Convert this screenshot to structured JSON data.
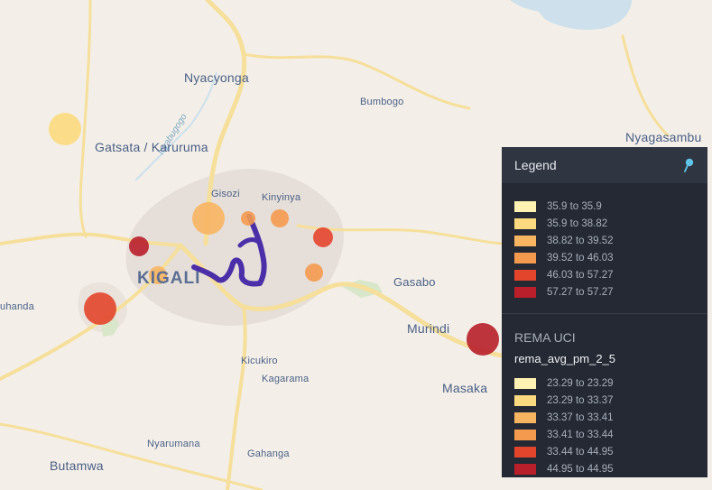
{
  "places": [
    {
      "id": "nyacyonga",
      "label": "Nyacyonga",
      "size": "big"
    },
    {
      "id": "bumbogo",
      "label": "Bumbogo",
      "size": "small"
    },
    {
      "id": "nyagasambu",
      "label": "Nyagasambu",
      "size": "big"
    },
    {
      "id": "gatsata",
      "label": "Gatsata / Karuruma",
      "size": "big"
    },
    {
      "id": "gisozi",
      "label": "Gisozi",
      "size": "small"
    },
    {
      "id": "kinyinya",
      "label": "Kinyinya",
      "size": "small"
    },
    {
      "id": "kigali",
      "label": "KIGALI",
      "size": "city"
    },
    {
      "id": "gasabo",
      "label": "Gasabo",
      "size": "med"
    },
    {
      "id": "murindi",
      "label": "Murindi",
      "size": "big"
    },
    {
      "id": "masaka",
      "label": "Masaka",
      "size": "big"
    },
    {
      "id": "kicukiro",
      "label": "Kicukiro",
      "size": "small"
    },
    {
      "id": "kagarama",
      "label": "Kagarama",
      "size": "small"
    },
    {
      "id": "nyarumana",
      "label": "Nyarumana",
      "size": "small"
    },
    {
      "id": "gahanga",
      "label": "Gahanga",
      "size": "small"
    },
    {
      "id": "butamwa",
      "label": "Butamwa",
      "size": "big"
    },
    {
      "id": "ruhanda",
      "label": "uhanda",
      "size": "small"
    }
  ],
  "river_label": "Nyabugogo",
  "colors": {
    "water": "#cde0ec",
    "road": "#f6df9a",
    "urban": "#e6dfd9",
    "track": "#4a2fa8"
  },
  "circles": [
    {
      "id": "c1",
      "color": "#fbd97e",
      "value_band": "35.9 to 38.82"
    },
    {
      "id": "c2",
      "color": "#f7b562",
      "value_band": "38.82 to 39.52"
    },
    {
      "id": "c3",
      "color": "#f49a4f",
      "value_band": "39.52 to 46.03"
    },
    {
      "id": "c4",
      "color": "#e3452c",
      "value_band": "46.03 to 57.27"
    },
    {
      "id": "c5",
      "color": "#b81f2a",
      "value_band": "57.27 to 57.27"
    },
    {
      "id": "c6",
      "color": "#f7b562",
      "value_band": "38.82 to 39.52"
    },
    {
      "id": "c7",
      "color": "#f49a4f",
      "value_band": "39.52 to 46.03"
    },
    {
      "id": "c8",
      "color": "#f49a4f",
      "value_band": "39.52 to 46.03"
    },
    {
      "id": "c9",
      "color": "#e3452c",
      "value_band": "46.03 to 57.27"
    },
    {
      "id": "c10",
      "color": "#b81f2a",
      "value_band": "57.27 to 57.27"
    }
  ],
  "legend": {
    "title": "Legend",
    "pin_icon": "pin-icon",
    "section1": {
      "items": [
        {
          "label": "35.9 to 35.9",
          "color": "#fff2b2"
        },
        {
          "label": "35.9 to 38.82",
          "color": "#fbd97e"
        },
        {
          "label": "38.82 to 39.52",
          "color": "#f7b562"
        },
        {
          "label": "39.52 to 46.03",
          "color": "#f49a4f"
        },
        {
          "label": "46.03 to 57.27",
          "color": "#e3452c"
        },
        {
          "label": "57.27 to 57.27",
          "color": "#b81f2a"
        }
      ]
    },
    "section2": {
      "layer": "REMA UCI",
      "field": "rema_avg_pm_2_5",
      "items": [
        {
          "label": "23.29 to 23.29",
          "color": "#fff2b2"
        },
        {
          "label": "23.29 to 33.37",
          "color": "#fbd97e"
        },
        {
          "label": "33.37 to 33.41",
          "color": "#f7b562"
        },
        {
          "label": "33.41 to 33.44",
          "color": "#f49a4f"
        },
        {
          "label": "33.44 to 44.95",
          "color": "#e3452c"
        },
        {
          "label": "44.95 to 44.95",
          "color": "#b81f2a"
        }
      ]
    }
  }
}
